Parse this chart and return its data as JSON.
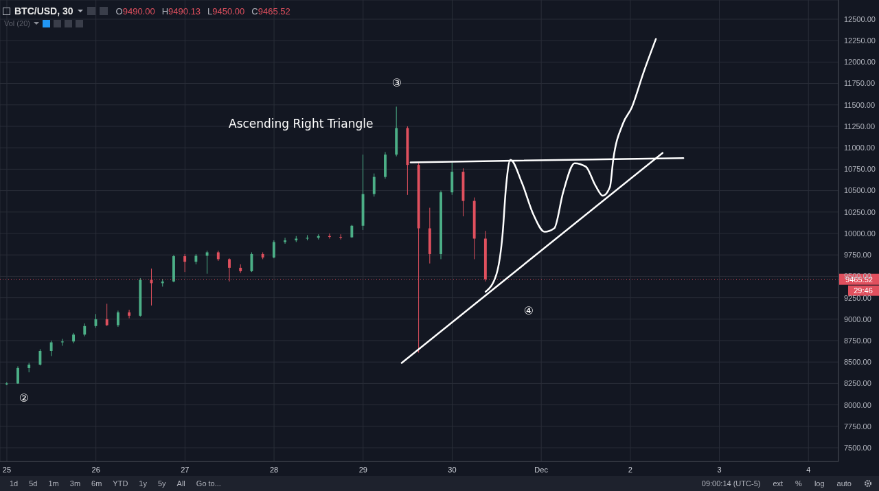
{
  "chart_data": {
    "type": "candlestick",
    "title": "BTC/USD, 30",
    "subtitle": "O9490.00 H9490.13 L9450.00 C9465.52",
    "x": [
      "--11-25T00:00",
      "--11-25T03:00",
      "--11-25T06:00",
      "--11-25T09:00",
      "--11-25T12:00",
      "--11-25T15:00",
      "--11-25T18:00",
      "--11-25T21:00",
      "--11-26T00:00",
      "--11-26T03:00",
      "--11-26T06:00",
      "--11-26T09:00",
      "--11-26T12:00",
      "--11-26T15:00",
      "--11-26T18:00",
      "--11-26T21:00",
      "--11-27T00:00",
      "--11-27T03:00",
      "--11-27T06:00",
      "--11-27T09:00",
      "--11-27T12:00",
      "--11-27T15:00",
      "--11-27T18:00",
      "--11-27T21:00",
      "--11-28T00:00",
      "--11-28T03:00",
      "--11-28T06:00",
      "--11-28T09:00",
      "--11-28T12:00",
      "--11-28T15:00",
      "--11-28T18:00",
      "--11-28T21:00",
      "--11-29T00:00",
      "--11-29T03:00",
      "--11-29T06:00",
      "--11-29T09:00",
      "--11-29T12:00",
      "--11-29T15:00",
      "--11-29T18:00",
      "--11-29T21:00",
      "--11-30T00:00",
      "--11-30T03:00",
      "--11-30T06:00",
      "--11-30T09:00"
    ],
    "ohlc": [
      [
        8240,
        8265,
        8230,
        8250
      ],
      [
        8250,
        8450,
        8245,
        8430
      ],
      [
        8430,
        8490,
        8380,
        8470
      ],
      [
        8470,
        8650,
        8460,
        8630
      ],
      [
        8630,
        8750,
        8570,
        8730
      ],
      [
        8730,
        8770,
        8690,
        8740
      ],
      [
        8740,
        8840,
        8720,
        8820
      ],
      [
        8820,
        8950,
        8800,
        8920
      ],
      [
        8920,
        9060,
        8900,
        9000
      ],
      [
        9000,
        9180,
        8920,
        8930
      ],
      [
        8930,
        9100,
        8910,
        9080
      ],
      [
        9080,
        9110,
        9010,
        9040
      ],
      [
        9040,
        9480,
        9030,
        9460
      ],
      [
        9460,
        9590,
        9160,
        9420
      ],
      [
        9420,
        9470,
        9380,
        9440
      ],
      [
        9440,
        9750,
        9430,
        9735
      ],
      [
        9735,
        9760,
        9550,
        9670
      ],
      [
        9670,
        9760,
        9640,
        9740
      ],
      [
        9740,
        9800,
        9530,
        9780
      ],
      [
        9780,
        9800,
        9680,
        9700
      ],
      [
        9700,
        9710,
        9440,
        9600
      ],
      [
        9600,
        9640,
        9540,
        9560
      ],
      [
        9560,
        9780,
        9550,
        9760
      ],
      [
        9760,
        9780,
        9700,
        9720
      ],
      [
        9720,
        9920,
        9710,
        9900
      ],
      [
        9900,
        9950,
        9880,
        9920
      ],
      [
        9920,
        9970,
        9900,
        9940
      ],
      [
        9940,
        9980,
        9920,
        9950
      ],
      [
        9950,
        9990,
        9930,
        9970
      ],
      [
        9970,
        10000,
        9940,
        9960
      ],
      [
        9960,
        9990,
        9930,
        9955
      ],
      [
        9955,
        10100,
        9950,
        10090
      ],
      [
        10090,
        10920,
        10040,
        10460
      ],
      [
        10460,
        10700,
        10430,
        10660
      ],
      [
        10660,
        10950,
        10640,
        10920
      ],
      [
        10920,
        11480,
        10900,
        11230
      ],
      [
        11230,
        11250,
        10450,
        10800
      ],
      [
        10800,
        10820,
        8610,
        10060
      ],
      [
        10060,
        10300,
        9650,
        9760
      ],
      [
        9760,
        10500,
        9700,
        10480
      ],
      [
        10480,
        10830,
        10450,
        10720
      ],
      [
        10720,
        10760,
        10200,
        10380
      ],
      [
        10380,
        10420,
        9700,
        9940
      ],
      [
        9940,
        10030,
        9440,
        9465.52
      ]
    ],
    "colors": [
      "#4caf87",
      "#4caf87",
      "#4caf87",
      "#4caf87",
      "#4caf87",
      "#4caf87",
      "#4caf87",
      "#4caf87",
      "#4caf87",
      "#e0505e",
      "#4caf87",
      "#e0505e",
      "#4caf87",
      "#e0505e",
      "#4caf87",
      "#4caf87",
      "#e0505e",
      "#4caf87",
      "#4caf87",
      "#e0505e",
      "#e0505e",
      "#e0505e",
      "#4caf87",
      "#e0505e",
      "#4caf87",
      "#4caf87",
      "#4caf87",
      "#4caf87",
      "#4caf87",
      "#e0505e",
      "#e0505e",
      "#4caf87",
      "#4caf87",
      "#4caf87",
      "#4caf87",
      "#4caf87",
      "#e0505e",
      "#e0505e",
      "#e0505e",
      "#4caf87",
      "#4caf87",
      "#e0505e",
      "#e0505e",
      "#e0505e"
    ],
    "series": [
      {
        "type": "line",
        "color": "#ffffff",
        "x": [
          "--11-29T12:48",
          "--12-02T14:18"
        ],
        "values": [
          10830,
          10880
        ]
      },
      {
        "type": "line",
        "color": "#ffffff",
        "x": [
          "--11-29T10:24",
          "--12-02T08:42"
        ],
        "values": [
          8490,
          10940
        ]
      },
      {
        "type": "line",
        "color": "#ffffff",
        "x": [
          "--11-30T09:00",
          "--11-30T11:54",
          "--11-30T13:36",
          "--11-30T14:30",
          "--11-30T15:42",
          "--11-30T18:48",
          "--11-30T21:54",
          "--12-01T00:54",
          "--12-01T03:30",
          "--12-01T05:54",
          "--12-01T09:00",
          "--12-01T12:00",
          "--12-01T14:36",
          "--12-01T16:36",
          "--12-01T18:30",
          "--12-01T19:24",
          "--12-01T22:00",
          "--12-02T00:24",
          "--12-02T03:30",
          "--12-02T06:54"
        ],
        "values": [
          9320,
          9520,
          10000,
          10540,
          10860,
          10590,
          10220,
          10020,
          10060,
          10480,
          10820,
          10780,
          10560,
          10440,
          10540,
          10860,
          11280,
          11470,
          11870,
          12270
        ]
      }
    ],
    "marker": "none",
    "line_style": "solid",
    "grid": true,
    "xlim": [
      "--11-24T22:09",
      "--12-04T08:06"
    ],
    "xticks": [
      {
        "value": "--11-25",
        "label": "25"
      },
      {
        "value": "--11-26",
        "label": "26"
      },
      {
        "value": "--11-27",
        "label": "27"
      },
      {
        "value": "--11-28",
        "label": "28"
      },
      {
        "value": "--11-29",
        "label": "29"
      },
      {
        "value": "--11-30",
        "label": "30"
      },
      {
        "value": "--12-01",
        "label": "Dec"
      },
      {
        "value": "--12-02",
        "label": "2"
      },
      {
        "value": "--12-03",
        "label": "3"
      },
      {
        "value": "--12-04",
        "label": "4"
      }
    ],
    "ylim": [
      7340,
      12724
    ],
    "yticks": [
      {
        "value": 7500,
        "label": "7500.00"
      },
      {
        "value": 7750,
        "label": "7750.00"
      },
      {
        "value": 8000,
        "label": "8000.00"
      },
      {
        "value": 8250,
        "label": "8250.00"
      },
      {
        "value": 8500,
        "label": "8500.00"
      },
      {
        "value": 8750,
        "label": "8750.00"
      },
      {
        "value": 9000,
        "label": "9000.00"
      },
      {
        "value": 9250,
        "label": "9250.00"
      },
      {
        "value": 9500,
        "label": "9500.00"
      },
      {
        "value": 9750,
        "label": "9750.00"
      },
      {
        "value": 10000,
        "label": "10000.00"
      },
      {
        "value": 10250,
        "label": "10250.00"
      },
      {
        "value": 10500,
        "label": "10500.00"
      },
      {
        "value": 10750,
        "label": "10750.00"
      },
      {
        "value": 11000,
        "label": "11000.00"
      },
      {
        "value": 11250,
        "label": "11250.00"
      },
      {
        "value": 11500,
        "label": "11500.00"
      },
      {
        "value": 11750,
        "label": "11750.00"
      },
      {
        "value": 12000,
        "label": "12000.00"
      },
      {
        "value": 12250,
        "label": "12250.00"
      },
      {
        "value": 12500,
        "label": "12500.00"
      }
    ],
    "ref_lines": [
      {
        "axis": "y",
        "value": 9465.52,
        "label": "9465.52",
        "color": "#e0505e",
        "line_style": "dotted"
      }
    ],
    "annotations": [
      "Ascending Right Triangle",
      "②",
      "③",
      "④",
      "Vol (20)",
      "29:46",
      "1d",
      "5d",
      "1m",
      "3m",
      "6m",
      "YTD",
      "1y",
      "5y",
      "All",
      "Go to...",
      "09:00:14 (UTC-5)",
      "ext",
      "%",
      "log",
      "auto"
    ]
  }
}
